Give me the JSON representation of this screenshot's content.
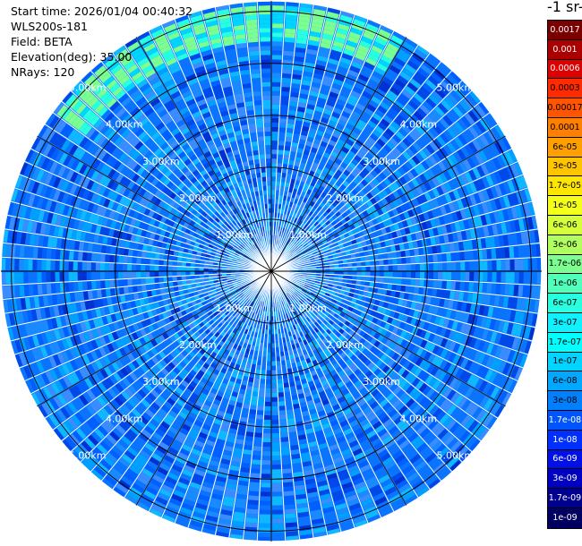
{
  "header": {
    "start_time": "Start time: 2026/01/04 00:40:32",
    "instrument": "WLS200s-181",
    "field": "Field: BETA",
    "elevation": "Elevation(deg): 35.00",
    "nrays": "NRays: 120"
  },
  "colorbar": {
    "units_label": "-1 sr-",
    "levels": [
      {
        "label": "0.0017",
        "color": "#7a0000"
      },
      {
        "label": "0.001",
        "color": "#aa0000"
      },
      {
        "label": "0.0006",
        "color": "#dd0000"
      },
      {
        "label": "0.0003",
        "color": "#ff2a00"
      },
      {
        "label": "0.00017",
        "color": "#ff5500"
      },
      {
        "label": "0.0001",
        "color": "#ff7f00"
      },
      {
        "label": "6e-05",
        "color": "#ffa000"
      },
      {
        "label": "3e-05",
        "color": "#ffc400"
      },
      {
        "label": "1.7e-05",
        "color": "#ffe600"
      },
      {
        "label": "1e-05",
        "color": "#f4ff1a"
      },
      {
        "label": "6e-06",
        "color": "#d4ff3a"
      },
      {
        "label": "3e-06",
        "color": "#b0ff5e"
      },
      {
        "label": "1.7e-06",
        "color": "#7cff90"
      },
      {
        "label": "1e-06",
        "color": "#50ffba"
      },
      {
        "label": "6e-07",
        "color": "#28ffe0"
      },
      {
        "label": "3e-07",
        "color": "#10f0ff"
      },
      {
        "label": "1.7e-07",
        "color": "#00ffff"
      },
      {
        "label": "1e-07",
        "color": "#00d4ff"
      },
      {
        "label": "6e-08",
        "color": "#00a8ff"
      },
      {
        "label": "3e-08",
        "color": "#0080ff"
      },
      {
        "label": "1.7e-08",
        "color": "#0055ff"
      },
      {
        "label": "1e-08",
        "color": "#0030ff"
      },
      {
        "label": "6e-09",
        "color": "#0010e6"
      },
      {
        "label": "3e-09",
        "color": "#0000c0"
      },
      {
        "label": "1.7e-09",
        "color": "#000090"
      },
      {
        "label": "1e-09",
        "color": "#000060"
      }
    ]
  },
  "chart_data": {
    "type": "heatmap",
    "projection": "polar-ppi",
    "field": "BETA",
    "elevation_deg": 35.0,
    "nrays": 120,
    "max_range_km": 5.2,
    "range_rings_km": [
      1,
      2,
      3,
      4,
      5
    ],
    "ring_labels": [
      "1.00km",
      "2.00km",
      "3.00km",
      "4.00km",
      "5.00km"
    ],
    "radial_gridlines_deg": [
      0,
      30,
      60,
      90,
      120,
      150,
      180,
      210,
      240,
      270,
      300,
      330
    ],
    "dominant_value_range": [
      "3e-08",
      "6e-08"
    ],
    "enhanced_sector": {
      "azimuth_deg": [
        -55,
        30
      ],
      "range_km": [
        4.4,
        5.1
      ],
      "value": "1.7e-06"
    }
  }
}
